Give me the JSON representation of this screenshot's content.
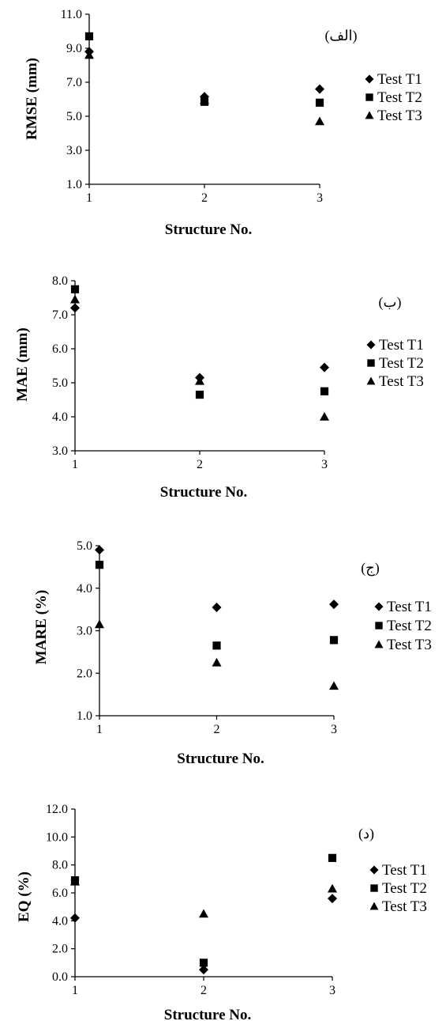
{
  "chart_data": [
    {
      "type": "scatter",
      "panel_label": "(الف)",
      "xlabel": "Structure No.",
      "ylabel": "RMSE (mm)",
      "x": [
        1,
        2,
        3
      ],
      "xlim": [
        1,
        3
      ],
      "ylim": [
        1.0,
        11.0
      ],
      "yticks": [
        "1.0",
        "3.0",
        "5.0",
        "7.0",
        "9.0",
        "11.0"
      ],
      "xticks": [
        "1",
        "2",
        "3"
      ],
      "grid": false,
      "legend_position": "right",
      "series": [
        {
          "name": "Test T1",
          "marker": "diamond",
          "values": [
            8.8,
            6.15,
            6.6
          ]
        },
        {
          "name": "Test T2",
          "marker": "square",
          "values": [
            9.7,
            5.85,
            5.8
          ]
        },
        {
          "name": "Test T3",
          "marker": "triangle",
          "values": [
            8.6,
            5.95,
            4.7
          ]
        }
      ]
    },
    {
      "type": "scatter",
      "panel_label": "(ب)",
      "xlabel": "Structure No.",
      "ylabel": "MAE (mm)",
      "x": [
        1,
        2,
        3
      ],
      "xlim": [
        1,
        3
      ],
      "ylim": [
        3.0,
        8.0
      ],
      "yticks": [
        "3.0",
        "4.0",
        "5.0",
        "6.0",
        "7.0",
        "8.0"
      ],
      "xticks": [
        "1",
        "2",
        "3"
      ],
      "grid": false,
      "legend_position": "right",
      "series": [
        {
          "name": "Test T1",
          "marker": "diamond",
          "values": [
            7.2,
            5.15,
            5.45
          ]
        },
        {
          "name": "Test T2",
          "marker": "square",
          "values": [
            7.75,
            4.65,
            4.75
          ]
        },
        {
          "name": "Test T3",
          "marker": "triangle",
          "values": [
            7.45,
            5.05,
            4.0
          ]
        }
      ]
    },
    {
      "type": "scatter",
      "panel_label": "(ج)",
      "xlabel": "Structure No.",
      "ylabel": "MARE (%)",
      "x": [
        1,
        2,
        3
      ],
      "xlim": [
        1,
        3
      ],
      "ylim": [
        1.0,
        5.0
      ],
      "yticks": [
        "1.0",
        "2.0",
        "3.0",
        "4.0",
        "5.0"
      ],
      "xticks": [
        "1",
        "2",
        "3"
      ],
      "grid": false,
      "legend_position": "right",
      "series": [
        {
          "name": "Test T1",
          "marker": "diamond",
          "values": [
            4.9,
            3.55,
            3.62
          ]
        },
        {
          "name": "Test T2",
          "marker": "square",
          "values": [
            4.55,
            2.65,
            2.78
          ]
        },
        {
          "name": "Test T3",
          "marker": "triangle",
          "values": [
            3.15,
            2.25,
            1.7
          ]
        }
      ]
    },
    {
      "type": "scatter",
      "panel_label": "(د)",
      "xlabel": "Structure No.",
      "ylabel": "EQ (%)",
      "x": [
        1,
        2,
        3
      ],
      "xlim": [
        1,
        3
      ],
      "ylim": [
        0.0,
        12.0
      ],
      "yticks": [
        "0.0",
        "2.0",
        "4.0",
        "6.0",
        "8.0",
        "10.0",
        "12.0"
      ],
      "xticks": [
        "1",
        "2",
        "3"
      ],
      "grid": false,
      "legend_position": "right",
      "series": [
        {
          "name": "Test T1",
          "marker": "diamond",
          "values": [
            4.2,
            0.5,
            5.6
          ]
        },
        {
          "name": "Test T2",
          "marker": "square",
          "values": [
            6.9,
            1.0,
            8.5
          ]
        },
        {
          "name": "Test T3",
          "marker": "triangle",
          "values": [
            6.8,
            4.5,
            6.3
          ]
        }
      ]
    }
  ]
}
